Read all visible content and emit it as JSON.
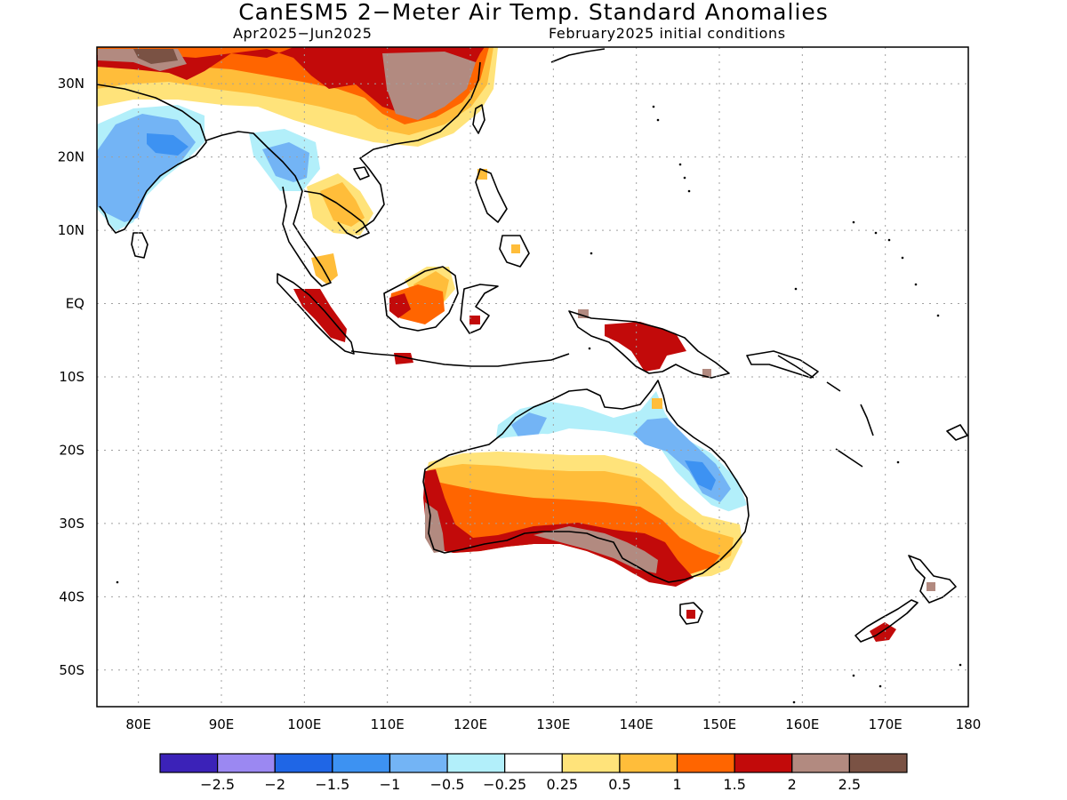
{
  "title": "CanESM5 2−Meter Air Temp. Standard Anomalies",
  "subtitle_left": "Apr2025−Jun2025",
  "subtitle_right": "February2025 initial conditions",
  "map": {
    "projection": "equirectangular",
    "lon_range": [
      75,
      180
    ],
    "lat_range": [
      -55,
      35
    ],
    "grid": "dotted",
    "lat_labels": [
      "30N",
      "20N",
      "10N",
      "EQ",
      "10S",
      "20S",
      "30S",
      "40S",
      "50S"
    ],
    "lat_values": [
      30,
      20,
      10,
      0,
      -10,
      -20,
      -30,
      -40,
      -50
    ],
    "lon_labels": [
      "80E",
      "90E",
      "100E",
      "110E",
      "120E",
      "130E",
      "140E",
      "150E",
      "160E",
      "170E",
      "180"
    ],
    "lon_values": [
      80,
      90,
      100,
      110,
      120,
      130,
      140,
      150,
      160,
      170,
      180
    ]
  },
  "colorbar": {
    "colors": [
      "#3b22b8",
      "#9b88f2",
      "#1f66e6",
      "#3d92f2",
      "#73b4f5",
      "#b2effa",
      "#ffffff",
      "#ffe37a",
      "#ffbd3a",
      "#ff6500",
      "#c20a0a",
      "#b28a80",
      "#7a5244"
    ],
    "labels": [
      "−2.5",
      "−2",
      "−1.5",
      "−1",
      "−0.5",
      "−0.25",
      "0.25",
      "0.5",
      "1",
      "1.5",
      "2",
      "2.5"
    ]
  },
  "regions": [
    {
      "name": "central-australia-warm",
      "category": "0.5"
    },
    {
      "name": "southern-australia-strong-warm",
      "category": "1.5"
    },
    {
      "name": "northeast-australia-cool",
      "category": "−1"
    },
    {
      "name": "south-china-warm",
      "category": "2"
    },
    {
      "name": "india-cool",
      "category": "−1"
    },
    {
      "name": "borneo-warm",
      "category": "1.5"
    },
    {
      "name": "new-guinea-warm",
      "category": "2"
    },
    {
      "name": "sumatra-warm",
      "category": "2"
    }
  ]
}
